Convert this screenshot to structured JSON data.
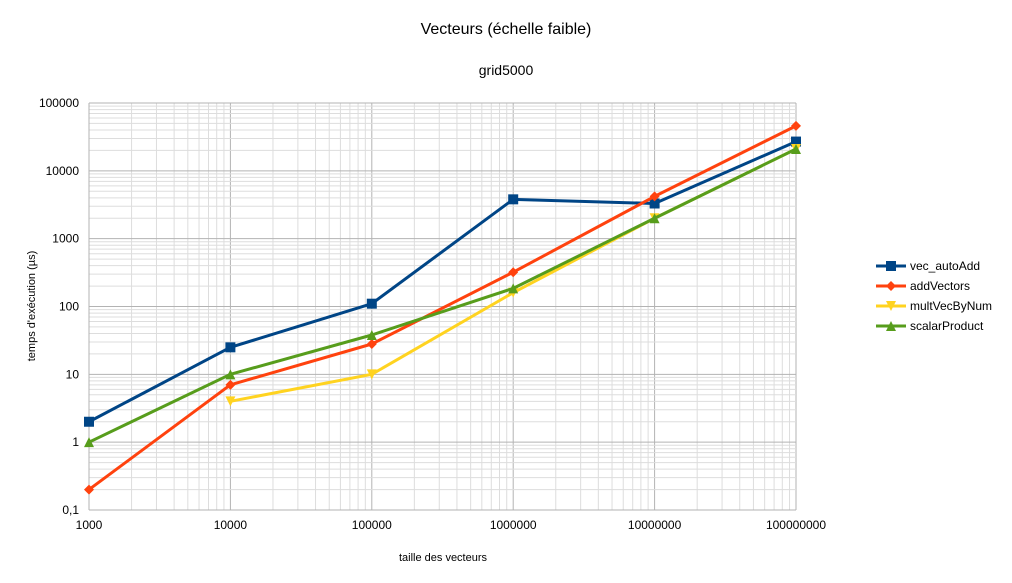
{
  "chart_data": {
    "type": "line",
    "title": "Vecteurs (échelle faible)",
    "subtitle": "grid5000",
    "xlabel": "taille des vecteurs",
    "ylabel": "temps d'exécution (µs)",
    "x_scale": "log",
    "y_scale": "log",
    "xlim": [
      1000,
      100000000
    ],
    "ylim": [
      0.1,
      100000
    ],
    "x_ticks": [
      "1000",
      "10000",
      "100000",
      "1000000",
      "10000000",
      "100000000"
    ],
    "y_ticks": [
      "0,1",
      "1",
      "10",
      "100",
      "1000",
      "10000",
      "100000"
    ],
    "grid": true,
    "legend_position": "right",
    "series": [
      {
        "name": "vec_autoAdd",
        "color": "#004586",
        "marker": "square",
        "x": [
          1000,
          10000,
          100000,
          1000000,
          10000000,
          100000000
        ],
        "y": [
          2,
          25,
          110,
          3800,
          3300,
          27000
        ]
      },
      {
        "name": "addVectors",
        "color": "#ff420e",
        "marker": "diamond",
        "x": [
          1000,
          10000,
          100000,
          1000000,
          10000000,
          100000000
        ],
        "y": [
          0.2,
          7,
          28,
          320,
          4200,
          46000
        ]
      },
      {
        "name": "multVecByNum",
        "color": "#ffd320",
        "marker": "triangle-down",
        "x": [
          10000,
          100000,
          1000000,
          10000000,
          100000000
        ],
        "y": [
          4,
          10,
          160,
          2000,
          21000
        ]
      },
      {
        "name": "scalarProduct",
        "color": "#579d1c",
        "marker": "triangle-up",
        "x": [
          1000,
          10000,
          100000,
          1000000,
          10000000,
          100000000
        ],
        "y": [
          1,
          10,
          38,
          185,
          2000,
          21000
        ]
      }
    ]
  }
}
